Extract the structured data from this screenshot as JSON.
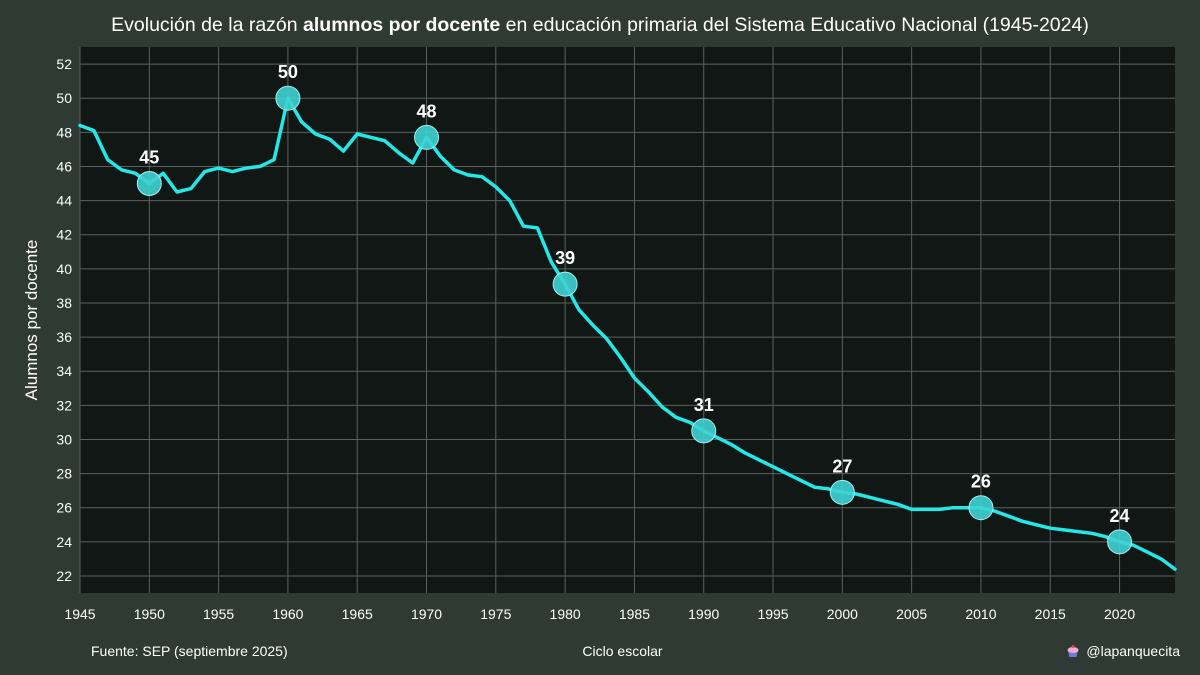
{
  "title": {
    "part1": "Evolución de la razón ",
    "bold": "alumnos por docente",
    "part2": " en educación primaria del Sistema Educativo Nacional (1945-2024)"
  },
  "footer": {
    "source": "Fuente: SEP (septiembre 2025)",
    "xlabel": "Ciclo escolar",
    "credit": "@lapanquecita"
  },
  "colors": {
    "background": "#2e3a33",
    "plot_background": "#111714",
    "line": "#22e8e8",
    "grid": "#5a625d"
  },
  "chart_data": {
    "type": "line",
    "xlabel": "Ciclo escolar",
    "ylabel": "Alumnos por docente",
    "xlim": [
      1945,
      2024
    ],
    "ylim": [
      21,
      53
    ],
    "xticks": [
      1945,
      1950,
      1955,
      1960,
      1965,
      1970,
      1975,
      1980,
      1985,
      1990,
      1995,
      2000,
      2005,
      2010,
      2015,
      2020
    ],
    "yticks": [
      22,
      24,
      26,
      28,
      30,
      32,
      34,
      36,
      38,
      40,
      42,
      44,
      46,
      48,
      50,
      52
    ],
    "grid": true,
    "x": [
      1945,
      1946,
      1947,
      1948,
      1949,
      1950,
      1951,
      1952,
      1953,
      1954,
      1955,
      1956,
      1957,
      1958,
      1959,
      1960,
      1961,
      1962,
      1963,
      1964,
      1965,
      1966,
      1967,
      1968,
      1969,
      1970,
      1971,
      1972,
      1973,
      1974,
      1975,
      1976,
      1977,
      1978,
      1979,
      1980,
      1981,
      1982,
      1983,
      1984,
      1985,
      1986,
      1987,
      1988,
      1989,
      1990,
      1991,
      1992,
      1993,
      1994,
      1995,
      1996,
      1997,
      1998,
      1999,
      2000,
      2001,
      2002,
      2003,
      2004,
      2005,
      2006,
      2007,
      2008,
      2009,
      2010,
      2011,
      2012,
      2013,
      2014,
      2015,
      2016,
      2017,
      2018,
      2019,
      2020,
      2021,
      2022,
      2023,
      2024
    ],
    "y": [
      48.4,
      48.1,
      46.4,
      45.8,
      45.6,
      45.0,
      45.6,
      44.5,
      44.7,
      45.7,
      45.9,
      45.7,
      45.9,
      46.0,
      46.4,
      50.0,
      48.6,
      47.9,
      47.6,
      46.9,
      47.9,
      47.7,
      47.5,
      46.8,
      46.2,
      47.7,
      46.6,
      45.8,
      45.5,
      45.4,
      44.8,
      44.0,
      42.5,
      42.4,
      40.4,
      39.1,
      37.6,
      36.7,
      35.9,
      34.8,
      33.6,
      32.8,
      31.9,
      31.3,
      31.0,
      30.5,
      30.1,
      29.7,
      29.2,
      28.8,
      28.4,
      28.0,
      27.6,
      27.2,
      27.1,
      26.9,
      26.8,
      26.6,
      26.4,
      26.2,
      25.9,
      25.9,
      25.9,
      26.0,
      26.0,
      26.0,
      25.8,
      25.5,
      25.2,
      25.0,
      24.8,
      24.7,
      24.6,
      24.5,
      24.3,
      24.0,
      23.8,
      23.4,
      23.0,
      22.4
    ],
    "annotations": [
      {
        "x": 1950,
        "y": 45.0,
        "label": "45"
      },
      {
        "x": 1960,
        "y": 50.0,
        "label": "50"
      },
      {
        "x": 1970,
        "y": 47.7,
        "label": "48"
      },
      {
        "x": 1980,
        "y": 39.1,
        "label": "39"
      },
      {
        "x": 1990,
        "y": 30.5,
        "label": "31"
      },
      {
        "x": 2000,
        "y": 26.9,
        "label": "27"
      },
      {
        "x": 2010,
        "y": 26.0,
        "label": "26"
      },
      {
        "x": 2020,
        "y": 24.0,
        "label": "24"
      }
    ]
  }
}
